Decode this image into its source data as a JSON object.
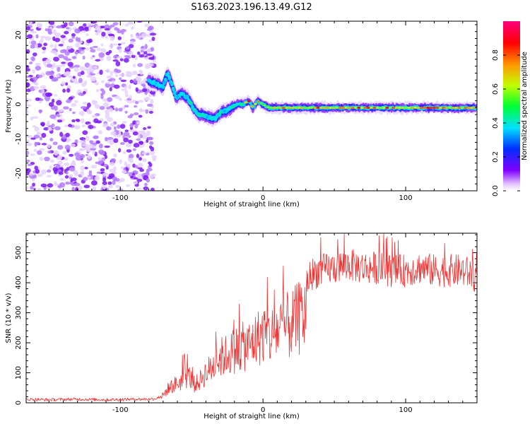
{
  "title": "S163.2023.196.13.49.G12",
  "chart_data": [
    {
      "type": "heatmap",
      "name": "spectrogram",
      "xlabel": "Height of straight line (km)",
      "ylabel": "Frequency (Hz)",
      "xlim": [
        -166,
        150
      ],
      "ylim": [
        -25,
        24
      ],
      "xticks": [
        -100,
        0,
        100
      ],
      "xtick_labels": [
        "-100",
        "0",
        "100"
      ],
      "yticks": [
        -20,
        -10,
        0,
        10,
        20
      ],
      "ytick_labels": [
        "-20",
        "-10",
        "0",
        "10",
        "20"
      ],
      "ridge": {
        "x": [
          -82,
          -75,
          -70,
          -67,
          -64,
          -61,
          -57,
          -53,
          -49,
          -45,
          -42,
          -37,
          -33,
          -29,
          -26,
          -22,
          -18,
          -14,
          -10,
          -7,
          -4,
          0,
          4,
          10,
          20,
          40,
          60,
          80,
          100,
          120,
          135,
          150
        ],
        "y": [
          7,
          6,
          5,
          9,
          6,
          2,
          3,
          2,
          -1,
          -3,
          -3,
          -4,
          -4,
          -2,
          -2,
          -1,
          0,
          0,
          1,
          -1,
          1,
          0,
          -1,
          -1,
          -1,
          -1,
          -1,
          -1,
          -1,
          -1,
          -1,
          -1
        ]
      },
      "noise_region_x": [
        -166,
        -80
      ],
      "colorbar": {
        "label": "Normalized spectral amplitude",
        "range": [
          0.0,
          1.0
        ],
        "ticks": [
          0.0,
          0.2,
          0.4,
          0.6,
          0.8
        ],
        "tick_labels": [
          "0.0",
          "0.2",
          "0.4",
          "0.6",
          "0.8"
        ]
      }
    },
    {
      "type": "line",
      "name": "snr",
      "xlabel": "Height of straight line (km)",
      "ylabel": "SNR (10 * v/v)",
      "xlim": [
        -166,
        150
      ],
      "ylim": [
        0,
        565
      ],
      "xticks": [
        -100,
        0,
        100
      ],
      "xtick_labels": [
        "-100",
        "0",
        "100"
      ],
      "yticks": [
        0,
        100,
        200,
        300,
        400,
        500
      ],
      "ytick_labels": [
        "0",
        "100",
        "200",
        "300",
        "400",
        "500"
      ],
      "color": "#ee3333",
      "series": [
        {
          "name": "SNR",
          "x": [
            -166,
            -150,
            -130,
            -110,
            -90,
            -80,
            -75,
            -70,
            -66,
            -62,
            -58,
            -55,
            -52,
            -48,
            -45,
            -40,
            -35,
            -30,
            -25,
            -20,
            -15,
            -10,
            -5,
            0,
            5,
            10,
            15,
            20,
            25,
            28,
            30,
            32,
            35,
            40,
            50,
            60,
            70,
            80,
            90,
            100,
            110,
            120,
            130,
            140,
            150
          ],
          "y": [
            12,
            10,
            12,
            10,
            12,
            12,
            14,
            25,
            50,
            60,
            70,
            80,
            90,
            60,
            70,
            100,
            120,
            150,
            160,
            175,
            185,
            190,
            210,
            230,
            220,
            240,
            250,
            260,
            280,
            290,
            300,
            420,
            430,
            440,
            450,
            460,
            450,
            450,
            440,
            440,
            450,
            440,
            440,
            440,
            420
          ]
        }
      ]
    }
  ]
}
